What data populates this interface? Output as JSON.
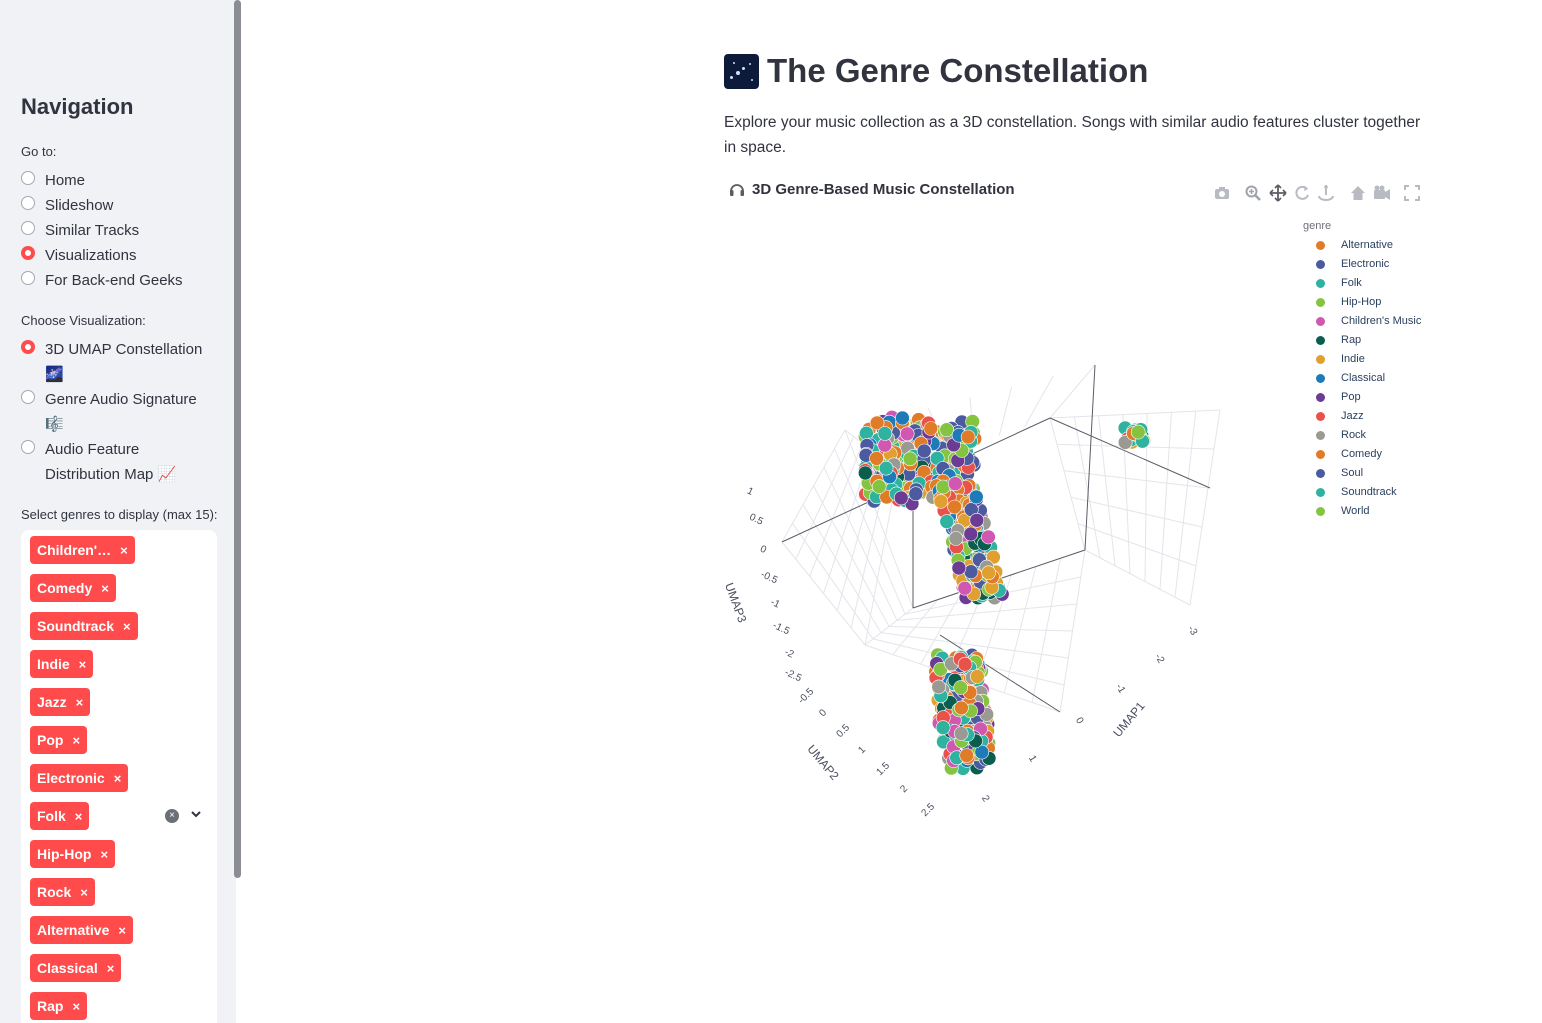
{
  "sidebar": {
    "nav_title": "Navigation",
    "goto_label": "Go to:",
    "pages": [
      {
        "label": "Home",
        "checked": false
      },
      {
        "label": "Slideshow",
        "checked": false
      },
      {
        "label": "Similar Tracks",
        "checked": false
      },
      {
        "label": "Visualizations",
        "checked": true
      },
      {
        "label": "For Back-end Geeks",
        "checked": false
      }
    ],
    "viz_label": "Choose Visualization:",
    "visualizations": [
      {
        "line1": "3D UMAP Constellation",
        "line2": "🌌",
        "checked": true
      },
      {
        "line1": "Genre Audio Signature",
        "line2": "🎼",
        "checked": false
      },
      {
        "line1": "Audio Feature",
        "line2": "Distribution Map 📈",
        "checked": false
      }
    ],
    "genre_select_label": "Select genres to display (max 15):",
    "selected_genres": [
      "Children'…",
      "Comedy",
      "Soundtrack",
      "Indie",
      "Jazz",
      "Pop",
      "Electronic",
      "Folk",
      "Hip-Hop",
      "Rock",
      "Alternative",
      "Classical",
      "Rap"
    ],
    "tag_remove": "×",
    "clear_all": "×"
  },
  "main": {
    "title": "The Genre Constellation",
    "description": "Explore your music collection as a 3D constellation. Songs with similar audio features cluster together in space.",
    "chart_title": "3D Genre-Based Music Constellation",
    "modebar": [
      "camera-icon",
      "zoom-icon",
      "pan-icon",
      "orbit-icon",
      "turntable-icon",
      "home-icon",
      "camera-view-icon",
      "fullscreen-icon"
    ]
  },
  "chart_data": {
    "type": "scatter",
    "dimensions": 3,
    "legend_title": "genre",
    "legend_position": "right",
    "series": [
      {
        "name": "Alternative",
        "color": "#e07b27"
      },
      {
        "name": "Electronic",
        "color": "#4c5aa0"
      },
      {
        "name": "Folk",
        "color": "#2fb3a0"
      },
      {
        "name": "Hip-Hop",
        "color": "#84c440"
      },
      {
        "name": "Children's Music",
        "color": "#d058b0"
      },
      {
        "name": "Rap",
        "color": "#0b5e4e"
      },
      {
        "name": "Indie",
        "color": "#e0a030"
      },
      {
        "name": "Classical",
        "color": "#1f7ab8"
      },
      {
        "name": "Pop",
        "color": "#6c3c95"
      },
      {
        "name": "Jazz",
        "color": "#e8524a"
      },
      {
        "name": "Rock",
        "color": "#9a9a93"
      },
      {
        "name": "Comedy",
        "color": "#e07b27"
      },
      {
        "name": "Soul",
        "color": "#4c5aa0"
      },
      {
        "name": "Soundtrack",
        "color": "#2fb3a0"
      },
      {
        "name": "World",
        "color": "#84c440"
      }
    ],
    "axes": {
      "x": {
        "label": "UMAP1",
        "ticks": [
          "-3",
          "-2",
          "-1",
          "0",
          "1",
          "2"
        ]
      },
      "y": {
        "label": "UMAP2",
        "ticks": [
          "-0.5",
          "0",
          "0.5",
          "1",
          "1.5",
          "2",
          "2.5"
        ]
      },
      "z": {
        "label": "UMAP3",
        "ticks": [
          "1",
          "0.5",
          "0",
          "-0.5",
          "-1",
          "-1.5",
          "-2",
          "-2.5"
        ]
      }
    },
    "clusters": [
      "main",
      "small",
      "lower"
    ]
  }
}
